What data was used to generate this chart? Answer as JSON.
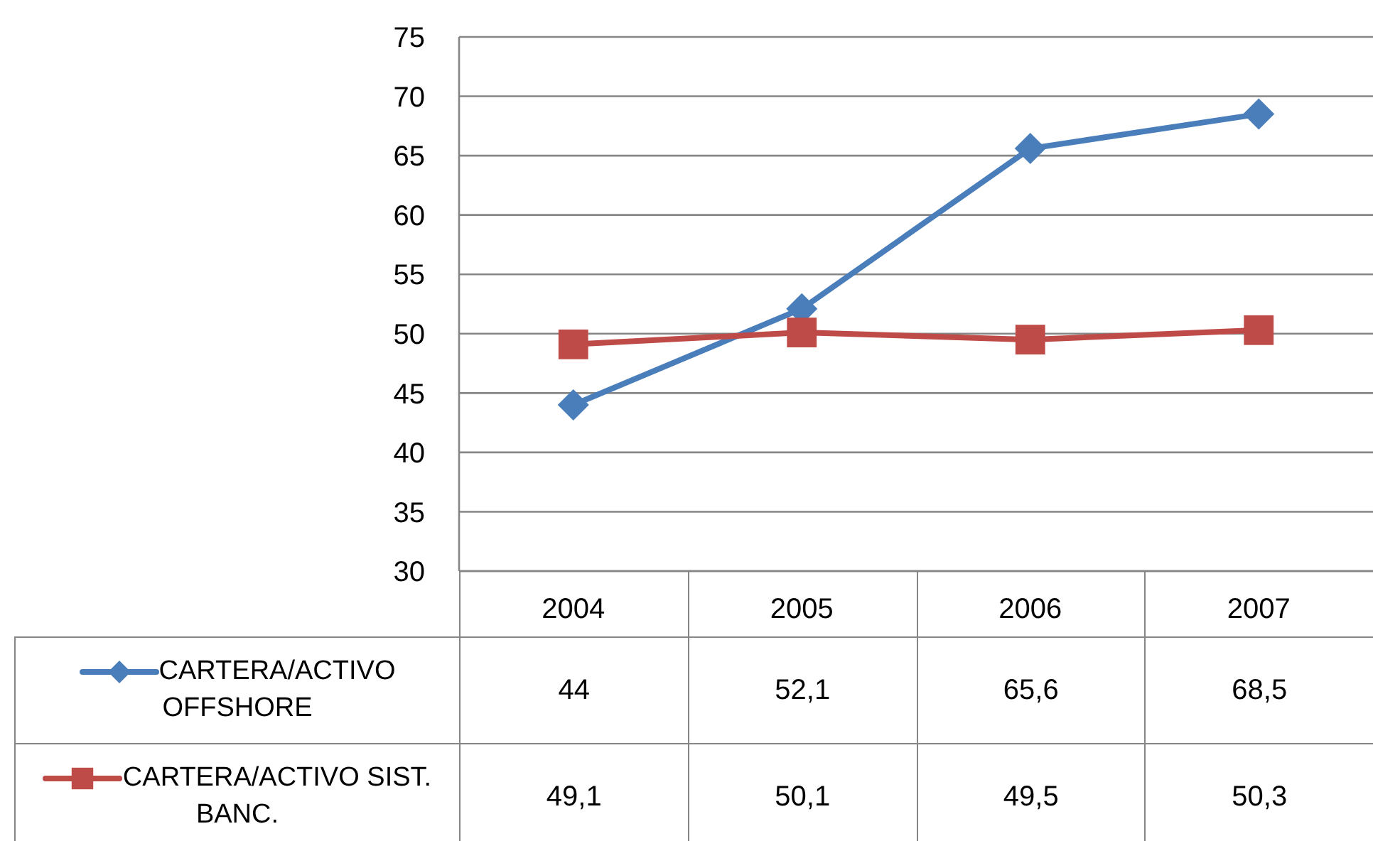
{
  "chart_data": {
    "type": "line",
    "categories": [
      "2004",
      "2005",
      "2006",
      "2007"
    ],
    "series": [
      {
        "name": "CARTERA/ACTIVO OFFSHORE",
        "color": "#4a7ebb",
        "marker": "diamond",
        "values": [
          44,
          52.1,
          65.6,
          68.5
        ],
        "value_labels": [
          "44",
          "52,1",
          "65,6",
          "68,5"
        ]
      },
      {
        "name": "CARTERA/ACTIVO SIST. BANC.",
        "color": "#be4b48",
        "marker": "square",
        "values": [
          49.1,
          50.1,
          49.5,
          50.3
        ],
        "value_labels": [
          "49,1",
          "50,1",
          "49,5",
          "50,3"
        ]
      }
    ],
    "ylim": [
      30,
      75
    ],
    "yticks": [
      30,
      35,
      40,
      45,
      50,
      55,
      60,
      65,
      70,
      75
    ],
    "grid": "y",
    "legend": "bottom"
  }
}
